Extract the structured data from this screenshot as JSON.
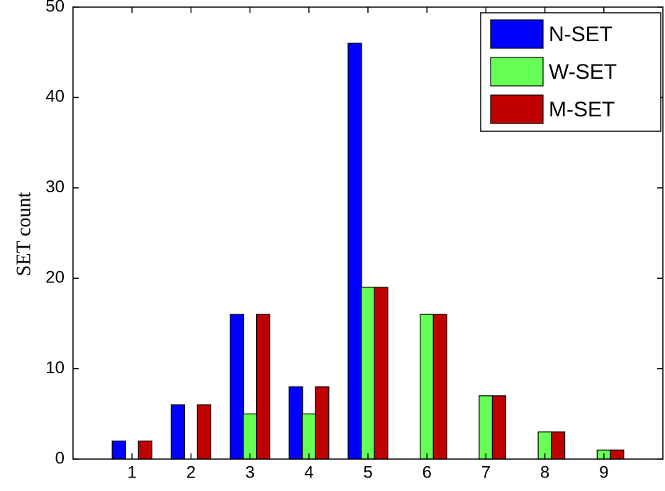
{
  "chart_data": {
    "type": "bar",
    "ylabel": "SET count",
    "x": [
      1,
      2,
      3,
      4,
      5,
      6,
      7,
      8,
      9
    ],
    "series": [
      {
        "name": "N-SET",
        "color": "#0000ff",
        "values": [
          2,
          6,
          16,
          8,
          46,
          0,
          0,
          0,
          0
        ]
      },
      {
        "name": "W-SET",
        "color": "#66ff55",
        "values": [
          0,
          0,
          5,
          5,
          19,
          16,
          7,
          3,
          1
        ]
      },
      {
        "name": "M-SET",
        "color": "#c00000",
        "values": [
          2,
          6,
          16,
          8,
          19,
          16,
          7,
          3,
          1
        ]
      }
    ],
    "xlim": [
      0,
      10
    ],
    "xticks": [
      1,
      2,
      3,
      4,
      5,
      6,
      7,
      8,
      9
    ],
    "ylim": [
      0,
      50
    ],
    "yticks": [
      0,
      10,
      20,
      30,
      40,
      50
    ],
    "legend": "upper-right"
  }
}
